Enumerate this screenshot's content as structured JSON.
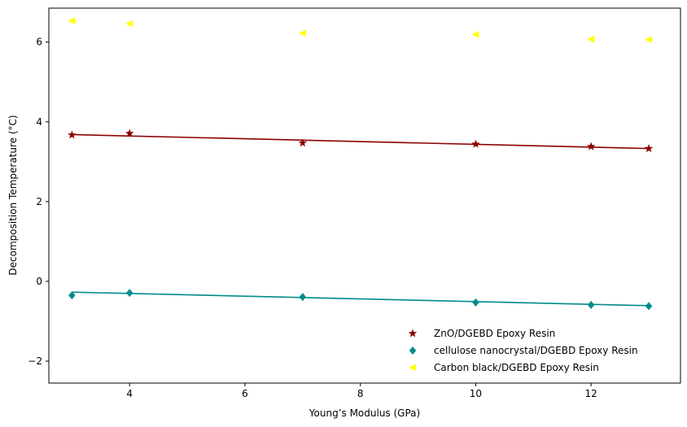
{
  "chart_data": {
    "type": "scatter",
    "xlabel": "Young’s Modulus (GPa)",
    "ylabel": "Decomposition Temperature (°C)",
    "xlim": [
      2.6,
      13.55
    ],
    "ylim": [
      -2.55,
      6.85
    ],
    "xticks": [
      4,
      6,
      8,
      10,
      12
    ],
    "yticks": [
      -2,
      0,
      2,
      4,
      6
    ],
    "grid": false,
    "legend_position": "lower-right",
    "series": [
      {
        "name": "ZnO/DGEBD Epoxy Resin",
        "marker": "star",
        "color": "#8b0000",
        "x": [
          3,
          4,
          7,
          10,
          12,
          13
        ],
        "y": [
          3.67,
          3.71,
          3.47,
          3.44,
          3.38,
          3.33
        ],
        "fit": {
          "x": [
            3,
            13
          ],
          "y": [
            3.68,
            3.33
          ]
        }
      },
      {
        "name": "cellulose nanocrystal/DGEBD Epoxy Resin",
        "marker": "diamond",
        "color": "#008b8b",
        "x": [
          3,
          4,
          7,
          10,
          12,
          13
        ],
        "y": [
          -0.35,
          -0.29,
          -0.39,
          -0.53,
          -0.59,
          -0.62
        ],
        "fit": {
          "x": [
            3,
            13
          ],
          "y": [
            -0.27,
            -0.61
          ]
        }
      },
      {
        "name": "Carbon black/DGEBD Epoxy Resin",
        "marker": "triangle-left",
        "color": "#ffff00",
        "x": [
          3,
          4,
          7,
          10,
          12,
          13
        ],
        "y": [
          6.53,
          6.46,
          6.22,
          6.19,
          6.07,
          6.06
        ]
      }
    ]
  }
}
